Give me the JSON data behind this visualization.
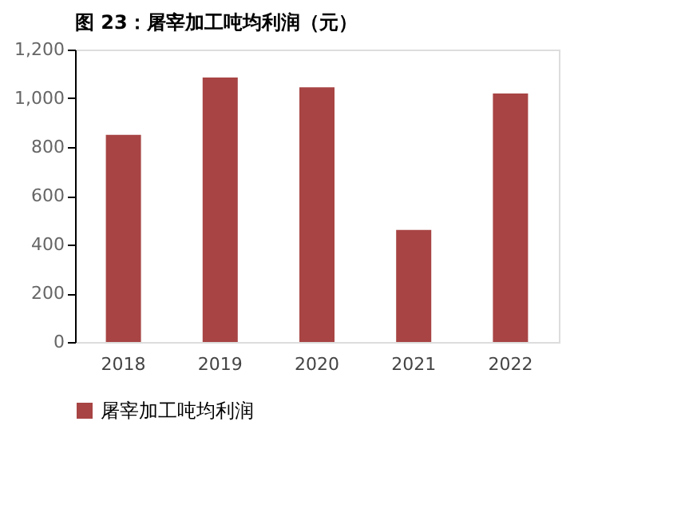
{
  "chart_data": {
    "type": "bar",
    "title": "图 23：屠宰加工吨均利润（元）",
    "categories": [
      "2018",
      "2019",
      "2020",
      "2021",
      "2022"
    ],
    "series": [
      {
        "name": "屠宰加工吨均利润",
        "color": "#a84444",
        "values": [
          850,
          1085,
          1045,
          460,
          1020
        ]
      }
    ],
    "ylim": [
      0,
      1200
    ],
    "yticks": [
      0,
      200,
      400,
      600,
      800,
      {
        "value": 1000,
        "label": "1,000"
      },
      {
        "value": 1200,
        "label": "1,200"
      }
    ],
    "grid": false,
    "legend": "bottom"
  }
}
